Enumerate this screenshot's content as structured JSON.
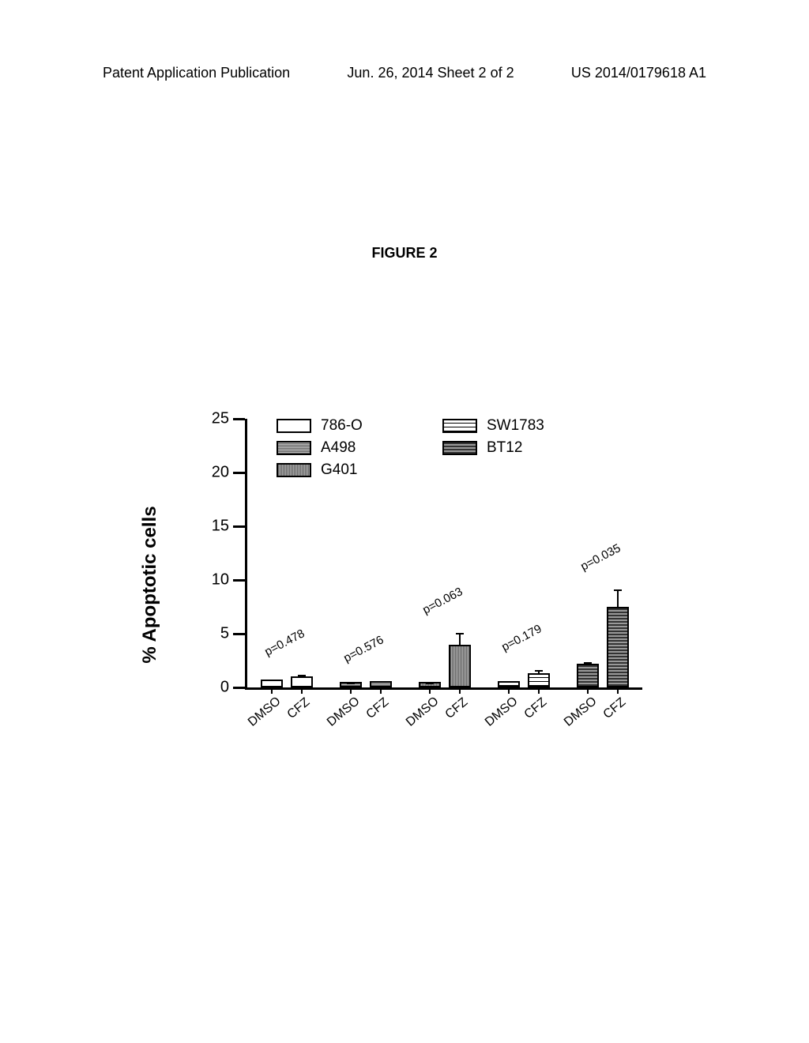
{
  "header": {
    "left": "Patent Application Publication",
    "center": "Jun. 26, 2014  Sheet 2 of 2",
    "right": "US 2014/0179618 A1"
  },
  "figure_label": "FIGURE 2",
  "chart": {
    "type": "bar",
    "ylabel": "% Apoptotic cells",
    "ylim": [
      0,
      25
    ],
    "ytick_step": 5,
    "yticks": [
      0,
      5,
      10,
      15,
      20,
      25
    ],
    "background_color": "#ffffff",
    "axis_color": "#000000",
    "label_fontsize": 24,
    "tick_fontsize": 20,
    "legend": {
      "items": [
        {
          "label": "786-O",
          "pattern": "p-786O"
        },
        {
          "label": "A498",
          "pattern": "p-A498"
        },
        {
          "label": "G401",
          "pattern": "p-G401"
        },
        {
          "label": "SW1783",
          "pattern": "p-SW1783"
        },
        {
          "label": "BT12",
          "pattern": "p-BT12"
        }
      ]
    },
    "groups": [
      {
        "cell_line": "786-O",
        "pattern": "p-786O",
        "pvalue": "p=0.478",
        "bars": [
          {
            "x": "DMSO",
            "v": 0.7,
            "err": 0.2
          },
          {
            "x": "CFZ",
            "v": 1.0,
            "err": 0.3
          }
        ]
      },
      {
        "cell_line": "A498",
        "pattern": "p-A498",
        "pvalue": "p=0.576",
        "bars": [
          {
            "x": "DMSO",
            "v": 0.5,
            "err": 0.1
          },
          {
            "x": "CFZ",
            "v": 0.6,
            "err": 0.15
          }
        ]
      },
      {
        "cell_line": "G401",
        "pattern": "p-G401",
        "pvalue": "p=0.063",
        "bars": [
          {
            "x": "DMSO",
            "v": 0.5,
            "err": 0.1
          },
          {
            "x": "CFZ",
            "v": 4.0,
            "err": 1.2
          }
        ]
      },
      {
        "cell_line": "SW1783",
        "pattern": "p-SW1783",
        "pvalue": "p=0.179",
        "bars": [
          {
            "x": "DMSO",
            "v": 0.6,
            "err": 0.15
          },
          {
            "x": "CFZ",
            "v": 1.3,
            "err": 0.5
          }
        ]
      },
      {
        "cell_line": "BT12",
        "pattern": "p-BT12",
        "pvalue": "p=0.035",
        "bars": [
          {
            "x": "DMSO",
            "v": 2.2,
            "err": 0.3
          },
          {
            "x": "CFZ",
            "v": 7.5,
            "err": 1.8
          }
        ]
      }
    ]
  }
}
